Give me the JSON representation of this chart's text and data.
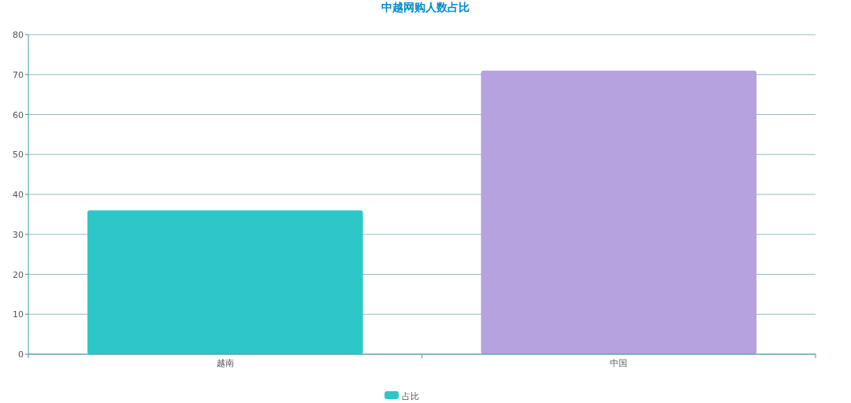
{
  "chart_data": {
    "type": "bar",
    "title": "中越网购人数占比",
    "categories": [
      "越南",
      "中国"
    ],
    "series": [
      {
        "name": "占比",
        "color": "#2ec7c9",
        "colors": [
          "#2ec7c9",
          "#b6a2de"
        ],
        "values": [
          36,
          71
        ]
      }
    ],
    "ylim": [
      0,
      80
    ],
    "yticks": [
      0,
      10,
      20,
      30,
      40,
      50,
      60,
      70,
      80
    ],
    "grid": "y",
    "legend": "bottom"
  }
}
